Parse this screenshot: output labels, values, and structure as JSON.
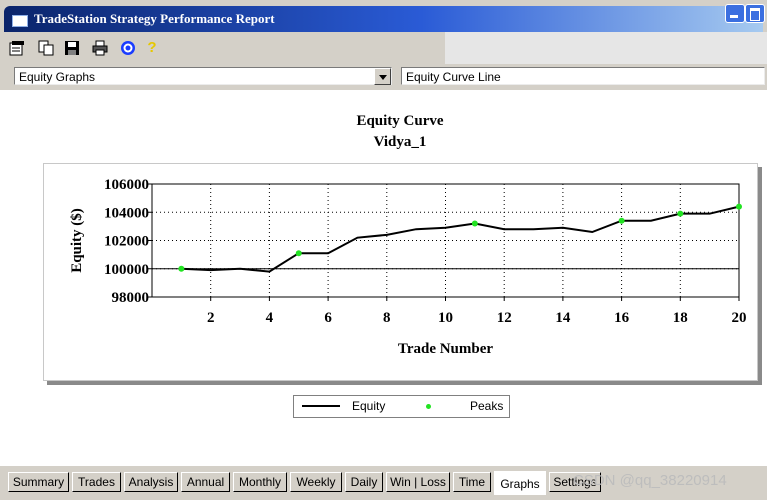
{
  "window": {
    "title": "TradeStation Strategy Performance Report"
  },
  "toolbar": {
    "icons": [
      "properties-icon",
      "copy-icon",
      "save-icon",
      "print-icon",
      "target-icon",
      "help-icon"
    ]
  },
  "dropdowns": {
    "graph_type": "Equity Graphs",
    "graph_style": "Equity Curve Line"
  },
  "chart_data": {
    "type": "line",
    "title": "Equity Curve",
    "subtitle": "Vidya_1",
    "xlabel": "Trade Number",
    "ylabel": "Equity ($)",
    "xlim": [
      0,
      20
    ],
    "ylim": [
      98000,
      106000
    ],
    "x_ticks": [
      2,
      4,
      6,
      8,
      10,
      12,
      14,
      16,
      18,
      20
    ],
    "y_ticks": [
      98000,
      100000,
      102000,
      104000,
      106000
    ],
    "grid": true,
    "legend_position": "bottom-center",
    "series": [
      {
        "name": "Equity",
        "color": "#000000",
        "x": [
          1,
          2,
          3,
          4,
          5,
          6,
          7,
          8,
          9,
          10,
          11,
          12,
          13,
          14,
          15,
          16,
          17,
          18,
          19,
          20
        ],
        "values": [
          100000,
          99900,
          100000,
          99800,
          101100,
          101100,
          102200,
          102400,
          102800,
          102900,
          103200,
          102800,
          102800,
          102900,
          102600,
          103400,
          103400,
          103900,
          103900,
          104400
        ]
      },
      {
        "name": "Peaks",
        "type": "scatter",
        "color": "#22e322",
        "x": [
          1,
          5,
          11,
          16,
          18,
          20
        ],
        "values": [
          100000,
          101100,
          103200,
          103400,
          103900,
          104400
        ]
      }
    ]
  },
  "tabs": [
    {
      "label": "Summary"
    },
    {
      "label": "Trades"
    },
    {
      "label": "Analysis"
    },
    {
      "label": "Annual"
    },
    {
      "label": "Monthly"
    },
    {
      "label": "Weekly"
    },
    {
      "label": "Daily"
    },
    {
      "label": "Win | Loss"
    },
    {
      "label": "Time"
    },
    {
      "label": "Graphs"
    },
    {
      "label": "Settings"
    }
  ],
  "watermark": "CSDN @qq_38220914"
}
